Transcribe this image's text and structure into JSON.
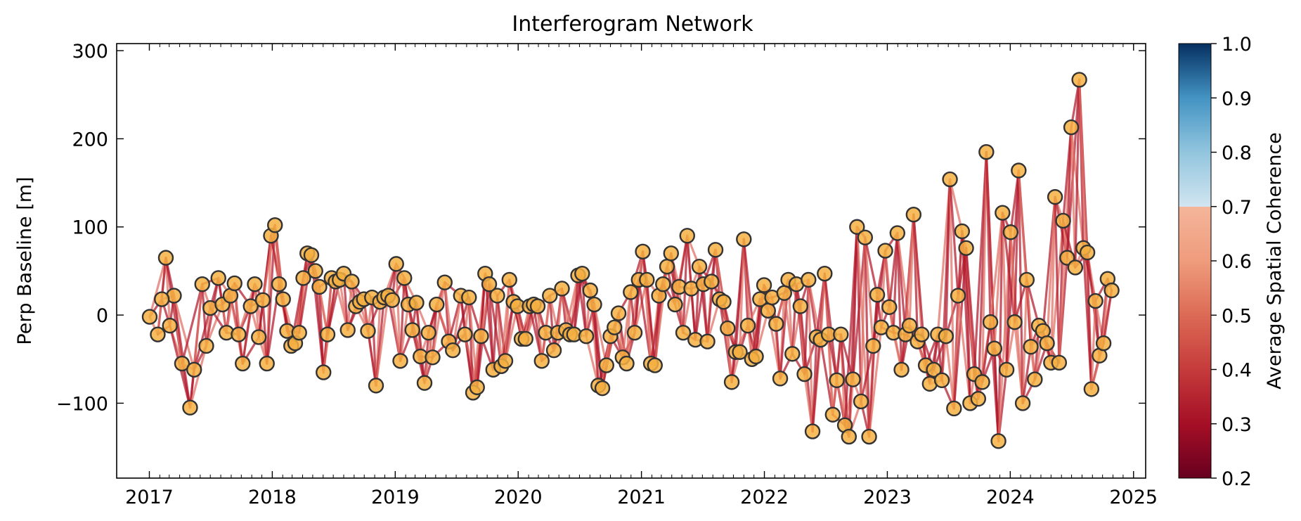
{
  "chart_data": {
    "type": "scatter",
    "title": "Interferogram Network",
    "xlabel": "",
    "ylabel": "Perp Baseline [m]",
    "x_ticks": [
      "2017",
      "2018",
      "2019",
      "2020",
      "2021",
      "2022",
      "2023",
      "2024",
      "2025"
    ],
    "xlim": [
      "2016-09-26",
      "2025-02-06"
    ],
    "y_ticks": [
      "−100",
      "0",
      "100",
      "200",
      "300"
    ],
    "ylim": [
      -185,
      308
    ],
    "grid": false,
    "colorbar": {
      "label": "Average Spatial Coherence",
      "ticks": [
        "0.2",
        "0.3",
        "0.4",
        "0.5",
        "0.6",
        "0.7",
        "0.8",
        "0.9",
        "1.0"
      ],
      "range": [
        0.2,
        1.0
      ],
      "visible_range": [
        0.2,
        0.7
      ],
      "colormap": "RdBu"
    },
    "colors": {
      "marker_fill": "#f5b042",
      "marker_edge": "#333333",
      "edge_strong": "#b2182b",
      "edge_light": "#e06e62"
    },
    "acquisitions": [
      {
        "date": "2017-01-02",
        "bperp": -2
      },
      {
        "date": "2017-01-26",
        "bperp": -22
      },
      {
        "date": "2017-02-19",
        "bperp": 65
      },
      {
        "date": "2017-03-03",
        "bperp": -12
      },
      {
        "date": "2017-03-15",
        "bperp": 22
      },
      {
        "date": "2017-02-07",
        "bperp": 18
      },
      {
        "date": "2017-04-08",
        "bperp": -55
      },
      {
        "date": "2017-05-02",
        "bperp": -105
      },
      {
        "date": "2017-05-14",
        "bperp": -62
      },
      {
        "date": "2017-06-07",
        "bperp": 35
      },
      {
        "date": "2017-06-19",
        "bperp": -35
      },
      {
        "date": "2017-07-01",
        "bperp": 8
      },
      {
        "date": "2017-07-25",
        "bperp": 42
      },
      {
        "date": "2017-08-06",
        "bperp": 12
      },
      {
        "date": "2017-08-18",
        "bperp": -20
      },
      {
        "date": "2017-08-30",
        "bperp": 22
      },
      {
        "date": "2017-09-11",
        "bperp": 36
      },
      {
        "date": "2017-09-23",
        "bperp": -22
      },
      {
        "date": "2017-10-05",
        "bperp": -55
      },
      {
        "date": "2017-10-29",
        "bperp": 10
      },
      {
        "date": "2017-11-10",
        "bperp": 35
      },
      {
        "date": "2017-11-22",
        "bperp": -25
      },
      {
        "date": "2017-12-04",
        "bperp": 17
      },
      {
        "date": "2017-12-16",
        "bperp": -55
      },
      {
        "date": "2017-12-28",
        "bperp": 90
      },
      {
        "date": "2018-01-09",
        "bperp": 102
      },
      {
        "date": "2018-01-21",
        "bperp": 35
      },
      {
        "date": "2018-02-02",
        "bperp": 18
      },
      {
        "date": "2018-02-14",
        "bperp": -18
      },
      {
        "date": "2018-02-26",
        "bperp": -35
      },
      {
        "date": "2018-03-10",
        "bperp": -32
      },
      {
        "date": "2018-03-22",
        "bperp": -20
      },
      {
        "date": "2018-04-03",
        "bperp": 42
      },
      {
        "date": "2018-04-15",
        "bperp": 70
      },
      {
        "date": "2018-04-27",
        "bperp": 68
      },
      {
        "date": "2018-05-09",
        "bperp": 50
      },
      {
        "date": "2018-05-21",
        "bperp": 32
      },
      {
        "date": "2018-06-02",
        "bperp": -65
      },
      {
        "date": "2018-06-14",
        "bperp": -22
      },
      {
        "date": "2018-06-26",
        "bperp": 42
      },
      {
        "date": "2018-07-08",
        "bperp": 38
      },
      {
        "date": "2018-07-20",
        "bperp": 40
      },
      {
        "date": "2018-08-01",
        "bperp": 47
      },
      {
        "date": "2018-08-13",
        "bperp": -17
      },
      {
        "date": "2018-08-25",
        "bperp": 38
      },
      {
        "date": "2018-09-06",
        "bperp": 10
      },
      {
        "date": "2018-09-18",
        "bperp": 15
      },
      {
        "date": "2018-09-30",
        "bperp": 18
      },
      {
        "date": "2018-10-12",
        "bperp": -18
      },
      {
        "date": "2018-10-24",
        "bperp": 20
      },
      {
        "date": "2018-11-05",
        "bperp": -80
      },
      {
        "date": "2018-11-17",
        "bperp": 15
      },
      {
        "date": "2018-11-29",
        "bperp": 20
      },
      {
        "date": "2018-12-11",
        "bperp": 22
      },
      {
        "date": "2018-12-23",
        "bperp": 17
      },
      {
        "date": "2019-01-04",
        "bperp": 58
      },
      {
        "date": "2019-01-16",
        "bperp": -52
      },
      {
        "date": "2019-01-28",
        "bperp": 42
      },
      {
        "date": "2019-02-09",
        "bperp": 12
      },
      {
        "date": "2019-02-21",
        "bperp": -17
      },
      {
        "date": "2019-03-05",
        "bperp": 14
      },
      {
        "date": "2019-03-17",
        "bperp": -47
      },
      {
        "date": "2019-03-29",
        "bperp": -77
      },
      {
        "date": "2019-04-10",
        "bperp": -20
      },
      {
        "date": "2019-04-22",
        "bperp": -48
      },
      {
        "date": "2019-05-04",
        "bperp": 12
      },
      {
        "date": "2019-05-28",
        "bperp": 37
      },
      {
        "date": "2019-06-09",
        "bperp": -30
      },
      {
        "date": "2019-06-21",
        "bperp": -40
      },
      {
        "date": "2019-07-15",
        "bperp": 22
      },
      {
        "date": "2019-07-27",
        "bperp": -22
      },
      {
        "date": "2019-08-08",
        "bperp": 20
      },
      {
        "date": "2019-08-20",
        "bperp": -88
      },
      {
        "date": "2019-09-01",
        "bperp": -82
      },
      {
        "date": "2019-09-13",
        "bperp": -24
      },
      {
        "date": "2019-09-25",
        "bperp": 47
      },
      {
        "date": "2019-10-07",
        "bperp": 35
      },
      {
        "date": "2019-10-19",
        "bperp": -62
      },
      {
        "date": "2019-10-31",
        "bperp": 22
      },
      {
        "date": "2019-11-12",
        "bperp": -58
      },
      {
        "date": "2019-11-24",
        "bperp": -52
      },
      {
        "date": "2019-12-06",
        "bperp": 40
      },
      {
        "date": "2019-12-18",
        "bperp": 15
      },
      {
        "date": "2019-12-30",
        "bperp": 10
      },
      {
        "date": "2020-01-11",
        "bperp": -27
      },
      {
        "date": "2020-01-23",
        "bperp": -27
      },
      {
        "date": "2020-02-04",
        "bperp": 10
      },
      {
        "date": "2020-02-16",
        "bperp": 12
      },
      {
        "date": "2020-02-28",
        "bperp": 10
      },
      {
        "date": "2020-03-11",
        "bperp": -52
      },
      {
        "date": "2020-03-23",
        "bperp": -20
      },
      {
        "date": "2020-04-04",
        "bperp": 22
      },
      {
        "date": "2020-04-16",
        "bperp": -40
      },
      {
        "date": "2020-04-28",
        "bperp": -20
      },
      {
        "date": "2020-05-10",
        "bperp": 30
      },
      {
        "date": "2020-05-22",
        "bperp": -17
      },
      {
        "date": "2020-06-03",
        "bperp": -22
      },
      {
        "date": "2020-06-15",
        "bperp": -22
      },
      {
        "date": "2020-06-27",
        "bperp": 45
      },
      {
        "date": "2020-07-09",
        "bperp": 47
      },
      {
        "date": "2020-07-21",
        "bperp": -24
      },
      {
        "date": "2020-08-02",
        "bperp": 28
      },
      {
        "date": "2020-08-14",
        "bperp": 12
      },
      {
        "date": "2020-08-26",
        "bperp": -80
      },
      {
        "date": "2020-09-07",
        "bperp": -83
      },
      {
        "date": "2020-09-19",
        "bperp": -57
      },
      {
        "date": "2020-10-01",
        "bperp": -24
      },
      {
        "date": "2020-10-13",
        "bperp": -14
      },
      {
        "date": "2020-10-25",
        "bperp": 2
      },
      {
        "date": "2020-11-06",
        "bperp": -48
      },
      {
        "date": "2020-11-18",
        "bperp": -55
      },
      {
        "date": "2020-11-30",
        "bperp": 26
      },
      {
        "date": "2020-12-12",
        "bperp": -20
      },
      {
        "date": "2020-12-24",
        "bperp": 40
      },
      {
        "date": "2021-01-05",
        "bperp": 72
      },
      {
        "date": "2021-01-17",
        "bperp": 40
      },
      {
        "date": "2021-01-29",
        "bperp": -55
      },
      {
        "date": "2021-02-10",
        "bperp": -57
      },
      {
        "date": "2021-02-22",
        "bperp": 22
      },
      {
        "date": "2021-03-06",
        "bperp": 35
      },
      {
        "date": "2021-03-18",
        "bperp": 55
      },
      {
        "date": "2021-03-30",
        "bperp": 70
      },
      {
        "date": "2021-04-11",
        "bperp": 12
      },
      {
        "date": "2021-04-23",
        "bperp": 32
      },
      {
        "date": "2021-05-05",
        "bperp": -20
      },
      {
        "date": "2021-05-17",
        "bperp": 90
      },
      {
        "date": "2021-05-29",
        "bperp": 30
      },
      {
        "date": "2021-06-10",
        "bperp": -28
      },
      {
        "date": "2021-06-22",
        "bperp": 55
      },
      {
        "date": "2021-07-04",
        "bperp": 35
      },
      {
        "date": "2021-07-16",
        "bperp": -30
      },
      {
        "date": "2021-07-28",
        "bperp": 38
      },
      {
        "date": "2021-08-09",
        "bperp": 74
      },
      {
        "date": "2021-08-21",
        "bperp": 18
      },
      {
        "date": "2021-09-02",
        "bperp": 15
      },
      {
        "date": "2021-09-14",
        "bperp": -15
      },
      {
        "date": "2021-09-26",
        "bperp": -76
      },
      {
        "date": "2021-10-08",
        "bperp": -42
      },
      {
        "date": "2021-10-20",
        "bperp": -42
      },
      {
        "date": "2021-11-01",
        "bperp": 86
      },
      {
        "date": "2021-11-13",
        "bperp": -12
      },
      {
        "date": "2021-11-25",
        "bperp": -50
      },
      {
        "date": "2021-12-07",
        "bperp": -47
      },
      {
        "date": "2021-12-19",
        "bperp": 18
      },
      {
        "date": "2021-12-31",
        "bperp": 34
      },
      {
        "date": "2022-01-12",
        "bperp": 5
      },
      {
        "date": "2022-01-24",
        "bperp": 20
      },
      {
        "date": "2022-02-05",
        "bperp": -10
      },
      {
        "date": "2022-02-17",
        "bperp": -72
      },
      {
        "date": "2022-03-01",
        "bperp": 25
      },
      {
        "date": "2022-03-13",
        "bperp": 40
      },
      {
        "date": "2022-03-25",
        "bperp": -44
      },
      {
        "date": "2022-04-06",
        "bperp": 35
      },
      {
        "date": "2022-04-18",
        "bperp": 10
      },
      {
        "date": "2022-04-30",
        "bperp": -67
      },
      {
        "date": "2022-05-12",
        "bperp": 40
      },
      {
        "date": "2022-05-24",
        "bperp": -132
      },
      {
        "date": "2022-06-05",
        "bperp": -25
      },
      {
        "date": "2022-06-17",
        "bperp": -28
      },
      {
        "date": "2022-06-29",
        "bperp": 47
      },
      {
        "date": "2022-07-11",
        "bperp": -22
      },
      {
        "date": "2022-07-23",
        "bperp": -113
      },
      {
        "date": "2022-08-04",
        "bperp": -74
      },
      {
        "date": "2022-08-16",
        "bperp": -22
      },
      {
        "date": "2022-08-28",
        "bperp": -125
      },
      {
        "date": "2022-09-09",
        "bperp": -138
      },
      {
        "date": "2022-09-21",
        "bperp": -73
      },
      {
        "date": "2022-10-03",
        "bperp": 100
      },
      {
        "date": "2022-10-15",
        "bperp": -98
      },
      {
        "date": "2022-10-27",
        "bperp": 88
      },
      {
        "date": "2022-11-08",
        "bperp": -138
      },
      {
        "date": "2022-11-20",
        "bperp": -35
      },
      {
        "date": "2022-12-02",
        "bperp": 23
      },
      {
        "date": "2022-12-14",
        "bperp": -14
      },
      {
        "date": "2022-12-26",
        "bperp": 73
      },
      {
        "date": "2023-01-07",
        "bperp": 9
      },
      {
        "date": "2023-01-19",
        "bperp": -20
      },
      {
        "date": "2023-01-31",
        "bperp": 93
      },
      {
        "date": "2023-02-12",
        "bperp": -62
      },
      {
        "date": "2023-02-24",
        "bperp": -22
      },
      {
        "date": "2023-03-08",
        "bperp": -12
      },
      {
        "date": "2023-03-20",
        "bperp": 114
      },
      {
        "date": "2023-04-01",
        "bperp": -30
      },
      {
        "date": "2023-04-13",
        "bperp": -22
      },
      {
        "date": "2023-04-25",
        "bperp": -57
      },
      {
        "date": "2023-05-07",
        "bperp": -78
      },
      {
        "date": "2023-05-19",
        "bperp": -62
      },
      {
        "date": "2023-05-31",
        "bperp": -22
      },
      {
        "date": "2023-06-12",
        "bperp": -74
      },
      {
        "date": "2023-06-24",
        "bperp": -24
      },
      {
        "date": "2023-07-06",
        "bperp": 154
      },
      {
        "date": "2023-07-18",
        "bperp": -106
      },
      {
        "date": "2023-07-30",
        "bperp": 22
      },
      {
        "date": "2023-08-11",
        "bperp": 95
      },
      {
        "date": "2023-08-23",
        "bperp": 76
      },
      {
        "date": "2023-09-04",
        "bperp": -100
      },
      {
        "date": "2023-09-16",
        "bperp": -67
      },
      {
        "date": "2023-09-28",
        "bperp": -95
      },
      {
        "date": "2023-10-10",
        "bperp": -76
      },
      {
        "date": "2023-10-22",
        "bperp": 185
      },
      {
        "date": "2023-11-03",
        "bperp": -8
      },
      {
        "date": "2023-11-15",
        "bperp": -38
      },
      {
        "date": "2023-11-27",
        "bperp": -143
      },
      {
        "date": "2023-12-09",
        "bperp": 116
      },
      {
        "date": "2023-12-21",
        "bperp": -62
      },
      {
        "date": "2024-01-02",
        "bperp": 94
      },
      {
        "date": "2024-01-14",
        "bperp": -8
      },
      {
        "date": "2024-01-26",
        "bperp": 164
      },
      {
        "date": "2024-02-07",
        "bperp": -100
      },
      {
        "date": "2024-02-19",
        "bperp": 40
      },
      {
        "date": "2024-03-02",
        "bperp": -36
      },
      {
        "date": "2024-03-14",
        "bperp": -73
      },
      {
        "date": "2024-03-26",
        "bperp": -12
      },
      {
        "date": "2024-04-07",
        "bperp": -18
      },
      {
        "date": "2024-04-19",
        "bperp": -32
      },
      {
        "date": "2024-05-01",
        "bperp": -54
      },
      {
        "date": "2024-05-13",
        "bperp": 134
      },
      {
        "date": "2024-05-25",
        "bperp": -54
      },
      {
        "date": "2024-06-06",
        "bperp": 107
      },
      {
        "date": "2024-06-18",
        "bperp": 65
      },
      {
        "date": "2024-06-30",
        "bperp": 213
      },
      {
        "date": "2024-07-12",
        "bperp": 54
      },
      {
        "date": "2024-07-24",
        "bperp": 267
      },
      {
        "date": "2024-08-05",
        "bperp": 76
      },
      {
        "date": "2024-08-17",
        "bperp": 71
      },
      {
        "date": "2024-08-29",
        "bperp": -84
      },
      {
        "date": "2024-09-10",
        "bperp": 16
      },
      {
        "date": "2024-09-22",
        "bperp": -46
      },
      {
        "date": "2024-10-04",
        "bperp": -32
      },
      {
        "date": "2024-10-16",
        "bperp": 41
      },
      {
        "date": "2024-10-28",
        "bperp": 28
      }
    ]
  }
}
